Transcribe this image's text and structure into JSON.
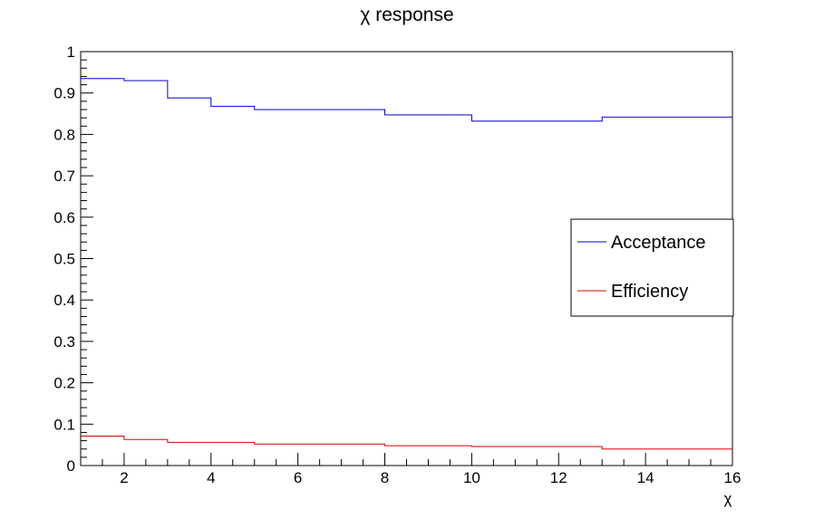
{
  "chart_data": {
    "type": "step-line",
    "title": "χ response",
    "xlabel": "χ",
    "ylabel": "",
    "xlim": [
      1,
      16
    ],
    "ylim": [
      0,
      1
    ],
    "x_ticks": [
      2,
      4,
      6,
      8,
      10,
      12,
      14,
      16
    ],
    "y_ticks": [
      0,
      0.1,
      0.2,
      0.3,
      0.4,
      0.5,
      0.6,
      0.7,
      0.8,
      0.9,
      1
    ],
    "bin_edges": [
      1,
      2,
      3,
      4,
      5,
      6,
      7,
      8,
      9,
      10,
      11,
      12,
      13,
      14,
      15,
      16
    ],
    "series": [
      {
        "name": "Acceptance",
        "color": "#0000cc",
        "values": [
          0.935,
          0.93,
          0.888,
          0.868,
          0.86,
          0.86,
          0.86,
          0.847,
          0.847,
          0.832,
          0.832,
          0.832,
          0.842,
          0.842,
          0.842
        ]
      },
      {
        "name": "Efficiency",
        "color": "#dd0000",
        "values": [
          0.071,
          0.063,
          0.056,
          0.056,
          0.052,
          0.052,
          0.052,
          0.048,
          0.048,
          0.046,
          0.046,
          0.046,
          0.04,
          0.04,
          0.04
        ]
      }
    ],
    "legend_position": "right",
    "grid": false
  }
}
